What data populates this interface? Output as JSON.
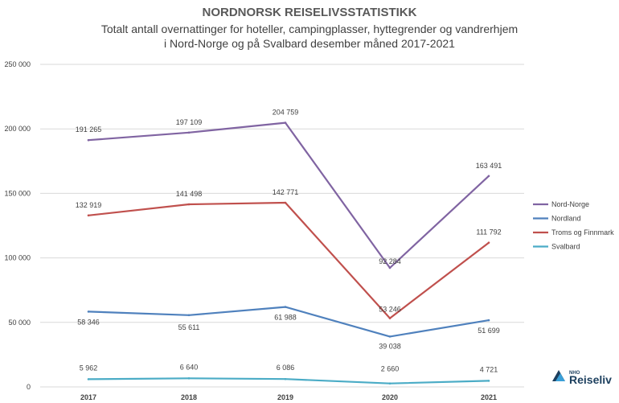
{
  "chart_data": {
    "type": "line",
    "title": "NORDNORSK REISELIVSSTATISTIKK",
    "subtitle_lines": [
      "Totalt antall overnattinger for hoteller, campingplasser, hyttegrender og vandrerhjem",
      "i Nord-Norge og på Svalbard desember måned 2017-2021"
    ],
    "categories": [
      "2017",
      "2018",
      "2019",
      "2020",
      "2021"
    ],
    "ylim": [
      0,
      250000
    ],
    "yticks": [
      0,
      50000,
      100000,
      150000,
      200000,
      250000
    ],
    "ytick_labels": [
      "0",
      "50 000",
      "100 000",
      "150 000",
      "200 000",
      "250 000"
    ],
    "grid": true,
    "legend_position": "right",
    "series": [
      {
        "name": "Nord-Norge",
        "color": "#8064a2",
        "values": [
          191265,
          197109,
          204759,
          92284,
          163491
        ],
        "labels": [
          "191 265",
          "197 109",
          "204 759",
          "92 284",
          "163 491"
        ]
      },
      {
        "name": "Nordland",
        "color": "#4f81bd",
        "values": [
          58346,
          55611,
          61988,
          39038,
          51699
        ],
        "labels": [
          "58 346",
          "55 611",
          "61 988",
          "39 038",
          "51 699"
        ]
      },
      {
        "name": "Troms og Finnmark",
        "color": "#c0504d",
        "values": [
          132919,
          141498,
          142771,
          53246,
          111792
        ],
        "labels": [
          "132 919",
          "141 498",
          "142 771",
          "53 246",
          "111 792"
        ]
      },
      {
        "name": "Svalbard",
        "color": "#4bacc6",
        "values": [
          5962,
          6640,
          6086,
          2660,
          4721
        ],
        "labels": [
          "5 962",
          "6 640",
          "6 086",
          "2 660",
          "4 721"
        ]
      }
    ]
  },
  "logo": {
    "small": "NHO",
    "big": "Reiseliv"
  }
}
